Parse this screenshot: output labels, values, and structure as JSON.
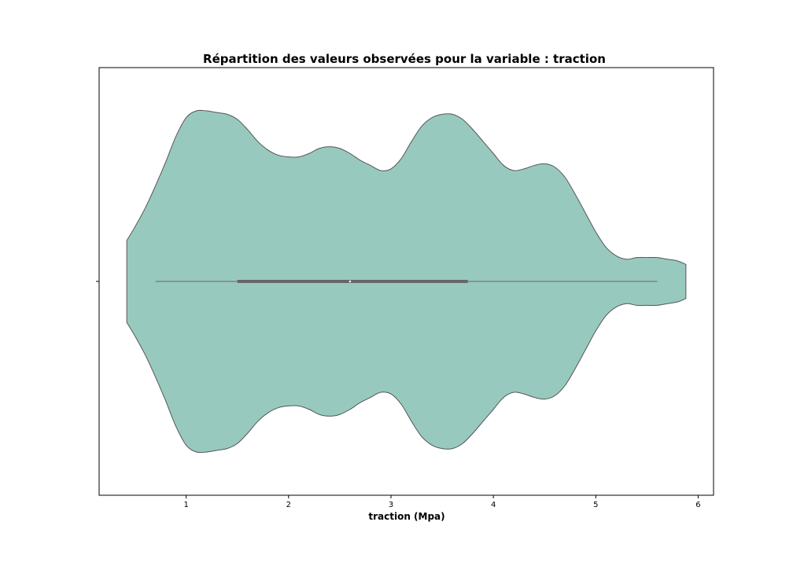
{
  "chart_data": {
    "type": "violin",
    "title": "Répartition des valeurs observées pour la variable : traction",
    "xlabel": "traction  (Mpa)",
    "ylabel": "",
    "xlim": [
      0.15,
      6.15
    ],
    "xticks": [
      1,
      2,
      3,
      4,
      5,
      6
    ],
    "grid": false,
    "colors": {
      "violin_fill": "#98c9bf",
      "violin_edge": "#555555",
      "box": "#666666"
    },
    "box": {
      "whisker_low": 0.7,
      "q1": 1.5,
      "median": 2.6,
      "q3": 3.75,
      "whisker_high": 5.6
    },
    "density_profile": {
      "x": [
        0.42,
        0.5,
        0.6,
        0.7,
        0.8,
        0.9,
        1.0,
        1.1,
        1.2,
        1.3,
        1.4,
        1.5,
        1.6,
        1.7,
        1.8,
        1.9,
        2.0,
        2.1,
        2.2,
        2.3,
        2.4,
        2.5,
        2.6,
        2.7,
        2.8,
        2.9,
        3.0,
        3.1,
        3.2,
        3.3,
        3.4,
        3.5,
        3.6,
        3.7,
        3.8,
        3.9,
        4.0,
        4.1,
        4.2,
        4.3,
        4.4,
        4.5,
        4.6,
        4.7,
        4.8,
        4.9,
        5.0,
        5.1,
        5.2,
        5.3,
        5.4,
        5.5,
        5.6,
        5.7,
        5.8,
        5.88
      ],
      "half_width": [
        0.24,
        0.32,
        0.43,
        0.56,
        0.7,
        0.85,
        0.96,
        1.0,
        1.0,
        0.99,
        0.98,
        0.95,
        0.89,
        0.82,
        0.77,
        0.74,
        0.73,
        0.73,
        0.75,
        0.78,
        0.79,
        0.78,
        0.75,
        0.71,
        0.68,
        0.65,
        0.66,
        0.72,
        0.82,
        0.91,
        0.96,
        0.98,
        0.98,
        0.95,
        0.89,
        0.82,
        0.75,
        0.68,
        0.65,
        0.66,
        0.68,
        0.69,
        0.67,
        0.61,
        0.51,
        0.4,
        0.29,
        0.2,
        0.15,
        0.13,
        0.14,
        0.14,
        0.14,
        0.13,
        0.12,
        0.1
      ]
    }
  }
}
